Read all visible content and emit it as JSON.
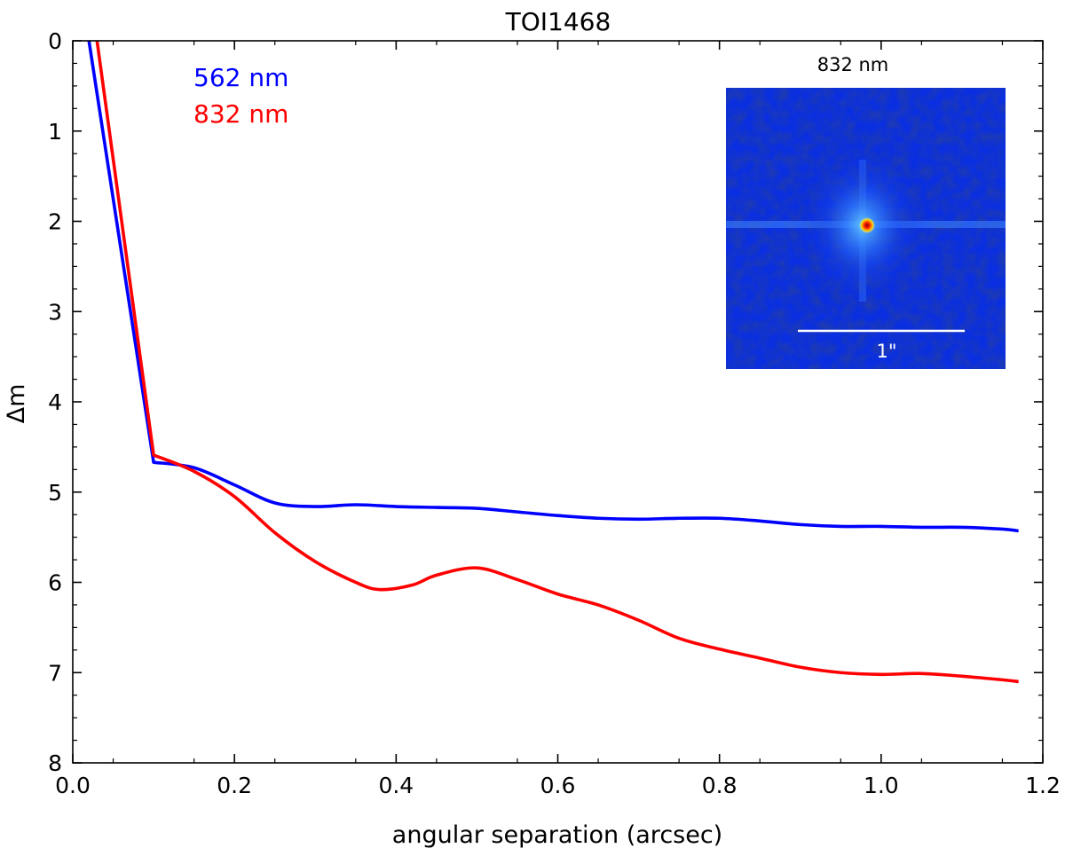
{
  "chart_data": {
    "type": "line",
    "title": "TOI1468",
    "xlabel": "angular separation (arcsec)",
    "ylabel": "Δm",
    "xlim": [
      0.0,
      1.2
    ],
    "ylim": [
      0,
      8
    ],
    "y_inverted": true,
    "grid": false,
    "legend_placement": "top-left",
    "x_ticks": [
      "0.0",
      "0.2",
      "0.4",
      "0.6",
      "0.8",
      "1.0",
      "1.2"
    ],
    "y_ticks": [
      "0",
      "1",
      "2",
      "3",
      "4",
      "5",
      "6",
      "7",
      "8"
    ],
    "series": [
      {
        "name": "562 nm",
        "color": "#0000ff",
        "x": [
          0.02,
          0.1,
          0.15,
          0.2,
          0.25,
          0.3,
          0.35,
          0.4,
          0.45,
          0.5,
          0.55,
          0.6,
          0.65,
          0.7,
          0.75,
          0.8,
          0.85,
          0.9,
          0.95,
          1.0,
          1.05,
          1.1,
          1.15,
          1.17
        ],
        "y": [
          0.0,
          4.67,
          4.73,
          4.92,
          5.12,
          5.16,
          5.14,
          5.16,
          5.17,
          5.18,
          5.22,
          5.26,
          5.29,
          5.3,
          5.29,
          5.29,
          5.32,
          5.36,
          5.38,
          5.38,
          5.39,
          5.39,
          5.41,
          5.43
        ]
      },
      {
        "name": "832 nm",
        "color": "#ff0000",
        "x": [
          0.03,
          0.1,
          0.15,
          0.2,
          0.25,
          0.3,
          0.35,
          0.38,
          0.42,
          0.45,
          0.5,
          0.55,
          0.6,
          0.65,
          0.7,
          0.75,
          0.8,
          0.85,
          0.9,
          0.95,
          1.0,
          1.05,
          1.1,
          1.15,
          1.17
        ],
        "y": [
          0.0,
          4.59,
          4.77,
          5.05,
          5.45,
          5.77,
          6.0,
          6.08,
          6.03,
          5.92,
          5.84,
          5.97,
          6.13,
          6.25,
          6.42,
          6.62,
          6.74,
          6.84,
          6.94,
          7.0,
          7.02,
          7.01,
          7.04,
          7.08,
          7.1
        ]
      }
    ],
    "inset": {
      "title": "832 nm",
      "scale_label": "1\""
    }
  },
  "colors": {
    "inset_background": "#0a2fe0",
    "inset_glow": "#2b7cff",
    "inset_core": "#ff2200"
  }
}
